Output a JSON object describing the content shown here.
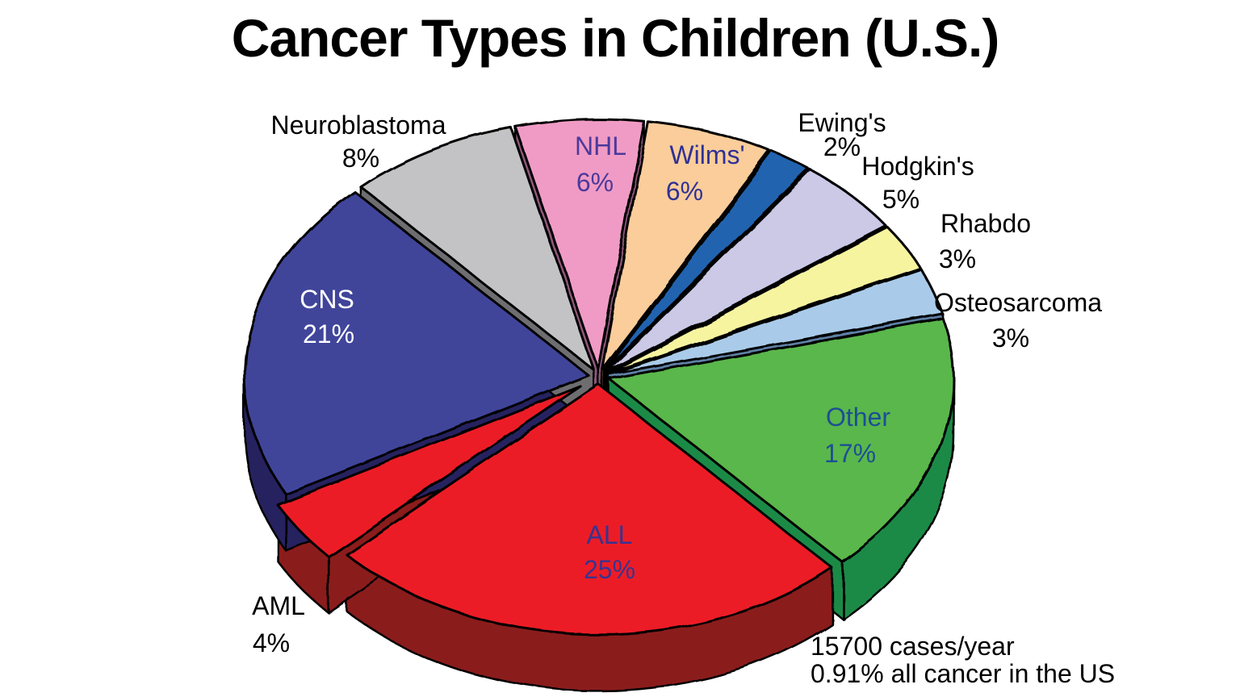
{
  "title": "Cancer Types in Children (U.S.)",
  "chart_data": {
    "type": "pie",
    "style": "3d-exploded",
    "title": "Cancer Types in Children (U.S.)",
    "start_angle_deg_clockwise_from_12": -14,
    "direction": "clockwise",
    "legend": "none",
    "slices": [
      {
        "label": "NHL",
        "value": 6,
        "pct_label": "6%",
        "color": "#F09BC5",
        "side_color": "#90587E",
        "text_color": "#4B3A9B",
        "label_placement": "inside"
      },
      {
        "label": "Wilms'",
        "value": 6,
        "pct_label": "6%",
        "color": "#FACD9B",
        "side_color": "#A17A45",
        "text_color": "#2F3193",
        "label_placement": "inside"
      },
      {
        "label": "Ewing's",
        "value": 2,
        "pct_label": "2%",
        "color": "#2063AF",
        "side_color": "#133E6F",
        "text_color": "#000000",
        "label_placement": "outside"
      },
      {
        "label": "Hodgkin's",
        "value": 5,
        "pct_label": "5%",
        "color": "#CBC9E6",
        "side_color": "#7F7CA6",
        "text_color": "#000000",
        "label_placement": "outside"
      },
      {
        "label": "Rhabdo",
        "value": 3,
        "pct_label": "3%",
        "color": "#F7F4A0",
        "side_color": "#99944F",
        "text_color": "#000000",
        "label_placement": "outside"
      },
      {
        "label": "Osteosarcoma",
        "value": 3,
        "pct_label": "3%",
        "color": "#A9CBE9",
        "side_color": "#5F80A6",
        "text_color": "#000000",
        "label_placement": "outside"
      },
      {
        "label": "Other",
        "value": 17,
        "pct_label": "17%",
        "color": "#5AB74B",
        "side_color": "#1A8A46",
        "text_color": "#1C4F94",
        "label_placement": "inside"
      },
      {
        "label": "ALL",
        "value": 25,
        "pct_label": "25%",
        "color": "#EC1E25",
        "side_color": "#8B1B1E",
        "text_color": "#39338F",
        "label_placement": "inside"
      },
      {
        "label": "AML",
        "value": 4,
        "pct_label": "4%",
        "color": "#EC1E25",
        "side_color": "#8B1B1E",
        "text_color": "#000000",
        "label_placement": "outside"
      },
      {
        "label": "CNS",
        "value": 21,
        "pct_label": "21%",
        "color": "#40449A",
        "side_color": "#25235F",
        "text_color": "#FFFFFF",
        "label_placement": "inside"
      },
      {
        "label": "Neuroblastoma",
        "value": 8,
        "pct_label": "8%",
        "color": "#C3C2C4",
        "side_color": "#6E6D6F",
        "text_color": "#000000",
        "label_placement": "outside"
      }
    ],
    "annotation": {
      "line1": "15700 cases/year",
      "line2": "0.91% all cancer in the US"
    },
    "outline_color": "#000000",
    "background_color": "#FFFFFF"
  }
}
